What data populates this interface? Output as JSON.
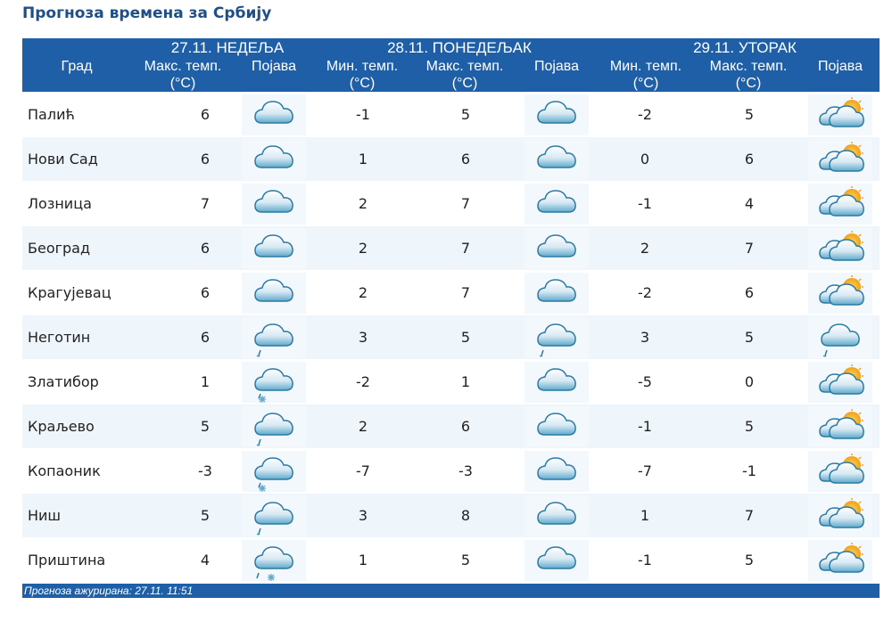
{
  "title": "Прогноза времена за Србију",
  "header": {
    "city_col": "Град",
    "day1": "27.11. НЕДЕЉА",
    "day2": "28.11. ПОНЕДЕЉАК",
    "day3": "29.11. УТОРАК",
    "max_temp": "Макс. темп.",
    "min_temp": "Мин. темп.",
    "unit": "(°C)",
    "phenomenon": "Појава"
  },
  "rows": [
    {
      "city": "Палић",
      "d1_max": "6",
      "d1_icon": "cloudy-icon",
      "d2_min": "-1",
      "d2_max": "5",
      "d2_icon": "cloudy-icon",
      "d3_min": "-2",
      "d3_max": "5",
      "d3_icon": "partly-sunny-icon"
    },
    {
      "city": "Нови Сад",
      "d1_max": "6",
      "d1_icon": "cloudy-icon",
      "d2_min": "1",
      "d2_max": "6",
      "d2_icon": "cloudy-icon",
      "d3_min": "0",
      "d3_max": "6",
      "d3_icon": "partly-sunny-icon"
    },
    {
      "city": "Лозница",
      "d1_max": "7",
      "d1_icon": "cloudy-icon",
      "d2_min": "2",
      "d2_max": "7",
      "d2_icon": "cloudy-icon",
      "d3_min": "-1",
      "d3_max": "4",
      "d3_icon": "partly-sunny-icon"
    },
    {
      "city": "Београд",
      "d1_max": "6",
      "d1_icon": "cloudy-icon",
      "d2_min": "2",
      "d2_max": "7",
      "d2_icon": "cloudy-icon",
      "d3_min": "2",
      "d3_max": "7",
      "d3_icon": "partly-sunny-icon"
    },
    {
      "city": "Крагујевац",
      "d1_max": "6",
      "d1_icon": "cloudy-icon",
      "d2_min": "2",
      "d2_max": "7",
      "d2_icon": "cloudy-icon",
      "d3_min": "-2",
      "d3_max": "6",
      "d3_icon": "partly-sunny-icon"
    },
    {
      "city": "Неготин",
      "d1_max": "6",
      "d1_icon": "cloud-rain-icon",
      "d2_min": "3",
      "d2_max": "5",
      "d2_icon": "cloud-rain-icon",
      "d3_min": "3",
      "d3_max": "5",
      "d3_icon": "cloud-rain-icon"
    },
    {
      "city": "Златибор",
      "d1_max": "1",
      "d1_icon": "cloud-snow-icon",
      "d2_min": "-2",
      "d2_max": "1",
      "d2_icon": "cloudy-icon",
      "d3_min": "-5",
      "d3_max": "0",
      "d3_icon": "partly-sunny-icon"
    },
    {
      "city": "Краљево",
      "d1_max": "5",
      "d1_icon": "cloud-rain-icon",
      "d2_min": "2",
      "d2_max": "6",
      "d2_icon": "cloudy-icon",
      "d3_min": "-1",
      "d3_max": "5",
      "d3_icon": "partly-sunny-icon"
    },
    {
      "city": "Копаоник",
      "d1_max": "-3",
      "d1_icon": "cloud-snow-icon",
      "d2_min": "-7",
      "d2_max": "-3",
      "d2_icon": "cloudy-icon",
      "d3_min": "-7",
      "d3_max": "-1",
      "d3_icon": "partly-sunny-icon"
    },
    {
      "city": "Ниш",
      "d1_max": "5",
      "d1_icon": "cloud-rain-icon",
      "d2_min": "3",
      "d2_max": "8",
      "d2_icon": "cloudy-icon",
      "d3_min": "1",
      "d3_max": "7",
      "d3_icon": "partly-sunny-icon"
    },
    {
      "city": "Приштина",
      "d1_max": "4",
      "d1_icon": "cloud-rain-snow-icon",
      "d2_min": "1",
      "d2_max": "5",
      "d2_icon": "cloudy-icon",
      "d3_min": "-1",
      "d3_max": "5",
      "d3_icon": "partly-sunny-icon"
    }
  ],
  "footer": "Прогноза ажурирана:  27.11.  11:51",
  "colors": {
    "header_bg": "#1f5fa7",
    "title": "#1d4f8a",
    "row_alt": "#eff6fb",
    "cloud": "#3f8fb7"
  }
}
